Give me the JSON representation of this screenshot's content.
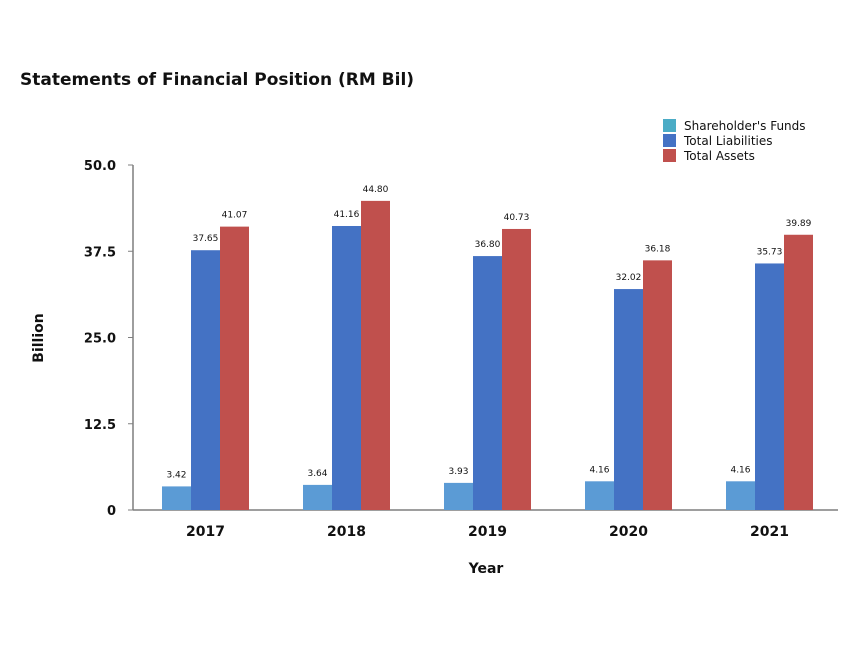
{
  "chart_data": {
    "type": "bar",
    "title": "Statements of Financial Position (RM Bil)",
    "xlabel": "Year",
    "ylabel": "Billion",
    "categories": [
      "2017",
      "2018",
      "2019",
      "2020",
      "2021"
    ],
    "yticks": [
      "0",
      "12.5",
      "25.0",
      "37.5",
      "50.0"
    ],
    "ylim": [
      0,
      50
    ],
    "legend_position": "top-right",
    "grid": false,
    "series": [
      {
        "name": "Shareholder's Funds",
        "color": "#5b9bd5",
        "legend_color": "#4bacc6",
        "values": [
          3.42,
          3.64,
          3.93,
          4.16,
          4.16
        ],
        "labels": [
          "3.42",
          "3.64",
          "3.93",
          "4.16",
          "4.16"
        ]
      },
      {
        "name": "Total Liabilities",
        "color": "#4472c4",
        "legend_color": "#4472c4",
        "values": [
          37.65,
          41.16,
          36.8,
          32.02,
          35.73
        ],
        "labels": [
          "37.65",
          "41.16",
          "36.80",
          "32.02",
          "35.73"
        ]
      },
      {
        "name": "Total Assets",
        "color": "#c0504d",
        "legend_color": "#c0504d",
        "values": [
          41.07,
          44.8,
          40.73,
          36.18,
          39.89
        ],
        "labels": [
          "41.07",
          "44.80",
          "40.73",
          "36.18",
          "39.89"
        ]
      }
    ]
  }
}
